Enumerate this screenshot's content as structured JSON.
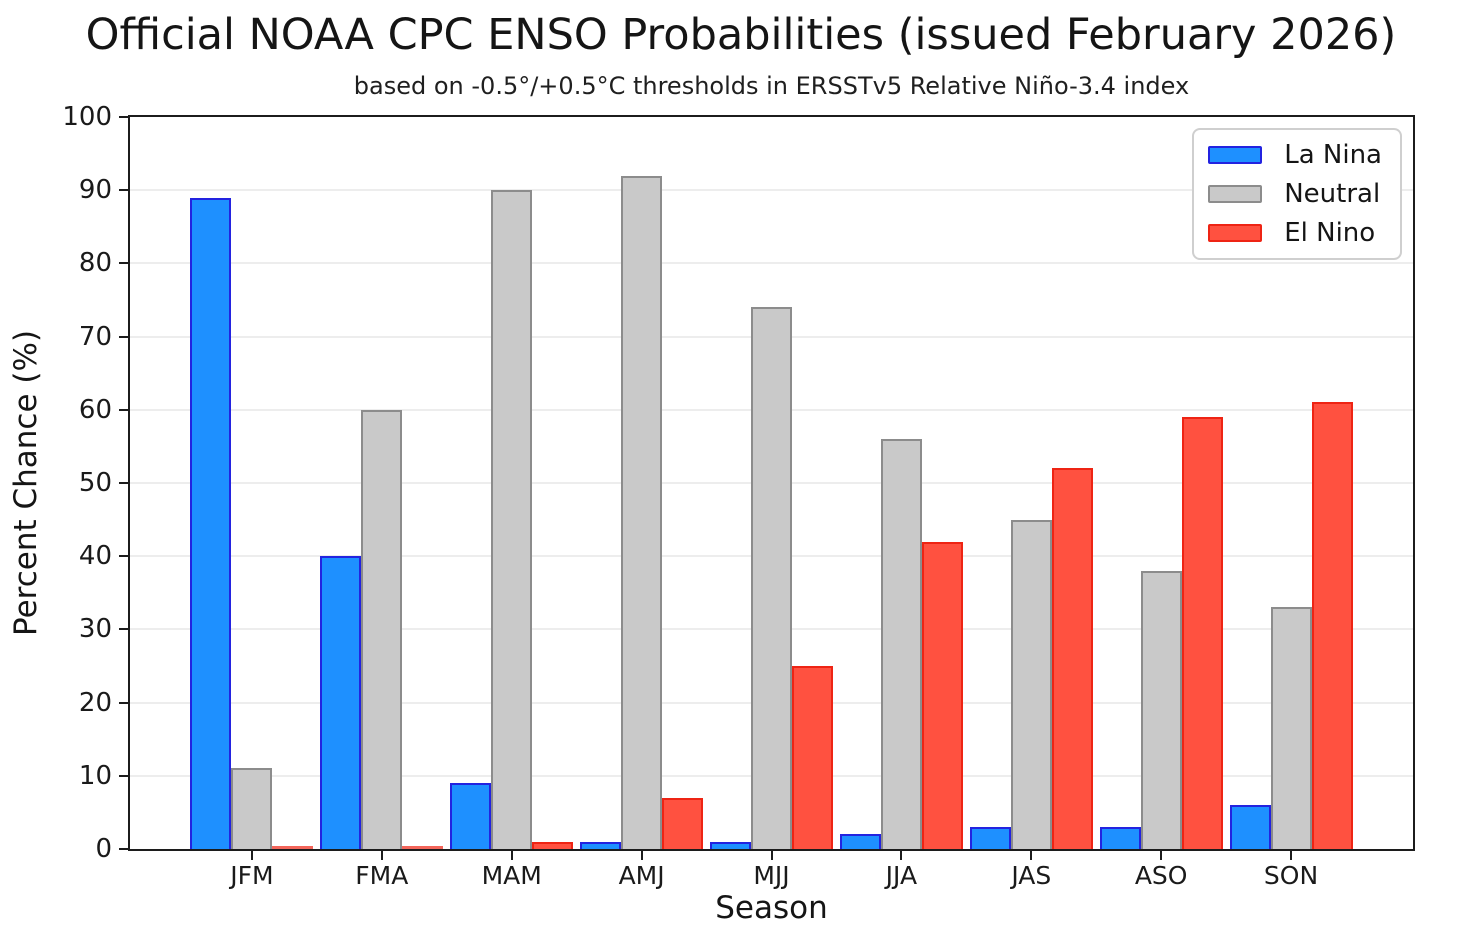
{
  "title": "Official NOAA CPC ENSO Probabilities (issued February 2026)",
  "subtitle": "based on -0.5°/+0.5°C thresholds in ERSSTv5 Relative Niño-3.4 index",
  "chart_data": {
    "type": "bar",
    "title": "Official NOAA CPC ENSO Probabilities (issued February 2026)",
    "subtitle": "based on -0.5°/+0.5°C thresholds in ERSSTv5 Relative Niño-3.4 index",
    "categories": [
      "JFM",
      "FMA",
      "MAM",
      "AMJ",
      "MJJ",
      "JJA",
      "JAS",
      "ASO",
      "SON"
    ],
    "series": [
      {
        "name": "La Nina",
        "fill": "#1E90FF",
        "edge": "#2323E0",
        "values": [
          89,
          40,
          9,
          1,
          1,
          2,
          3,
          3,
          6
        ]
      },
      {
        "name": "Neutral",
        "fill": "#C9C9C9",
        "edge": "#8C8C8C",
        "values": [
          11,
          60,
          90,
          92,
          74,
          56,
          45,
          38,
          33
        ]
      },
      {
        "name": "El Nino",
        "fill": "#FF5140",
        "edge": "#EE2414",
        "values": [
          0,
          0,
          1,
          7,
          25,
          42,
          52,
          59,
          61
        ]
      }
    ],
    "xlabel": "Season",
    "ylabel": "Percent Chance (%)",
    "ylim": [
      0,
      100
    ],
    "yticks": [
      0,
      10,
      20,
      30,
      40,
      50,
      60,
      70,
      80,
      90,
      100
    ],
    "grid": true,
    "legend_position": "upper right"
  }
}
